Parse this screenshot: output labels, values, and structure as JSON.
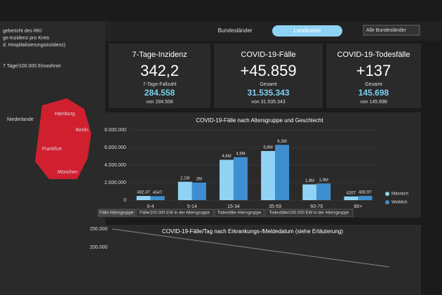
{
  "header": {
    "lines": [
      "gebericht des RKI",
      "ge-Inzidenz pro Kreis",
      "d. Hospitalisierungsinzidenz)"
    ]
  },
  "map": {
    "legend": "7 Tage/100.000 Einwohner",
    "labels": [
      "Niederlande",
      "Hamburg",
      "Berlin",
      "Frankfurt",
      "München"
    ]
  },
  "tabs": [
    "Bundesländer",
    "Landkreise"
  ],
  "dropdown": "Alle Bundesländer",
  "kpis": [
    {
      "title": "7-Tage-Inzidenz",
      "value": "342,2",
      "sublabel": "7-Tage-Fallzahl",
      "subvalue": "284.558",
      "note": "von 284.558"
    },
    {
      "title": "COVID-19-Fälle",
      "value": "+45.859",
      "sublabel": "Gesamt",
      "subvalue": "31.535.343",
      "note": "von 31.535.343"
    },
    {
      "title": "COVID-19-Todesfälle",
      "value": "+137",
      "sublabel": "Gesamt",
      "subvalue": "145.698",
      "note": "von 145.698"
    }
  ],
  "chart_data": {
    "type": "bar",
    "title": "COVID-19-Fälle nach Altersgruppe und Geschlecht",
    "categories": [
      "0-4",
      "5-14",
      "15-34",
      "35-59",
      "60-79",
      "80+"
    ],
    "series": [
      {
        "name": "Männlich",
        "color": "#8fd3f4",
        "values": [
          482400,
          2100000,
          4600000,
          5600000,
          1800000,
          426000
        ],
        "value_labels": [
          "482,4T",
          "2,1M",
          "4,6M",
          "5,6M",
          "1,8M",
          "426T"
        ]
      },
      {
        "name": "Weiblich",
        "color": "#3f8fd0",
        "values": [
          454000,
          2000000,
          4900000,
          6300000,
          1900000,
          488900
        ],
        "value_labels": [
          "454T",
          "2M",
          "4,9M",
          "6,3M",
          "1,9M",
          "488,9T"
        ]
      }
    ],
    "ylim": [
      0,
      8000000
    ],
    "yticks": [
      0,
      {
        "value": 2000000,
        "label": "2.000.000"
      },
      {
        "value": 4000000,
        "label": "4.000.000"
      },
      {
        "value": 6000000,
        "label": "6.000.000"
      },
      {
        "value": 8000000,
        "label": "8.000.000"
      }
    ],
    "grid": true
  },
  "chart_tabs": [
    "Fälle Altersgruppe",
    "Fälle/100.000 EW in der Altersgruppe",
    "Todesfälle Altersgruppe",
    "Todesfälle/100.000 EW in der Altersgruppe"
  ],
  "daily_chart": {
    "title": "COVID-19-Fälle/Tag nach Erkrankungs-/Meldedatum (siehe Erläuterung)",
    "labels": [
      "250.000",
      "200.000"
    ]
  }
}
